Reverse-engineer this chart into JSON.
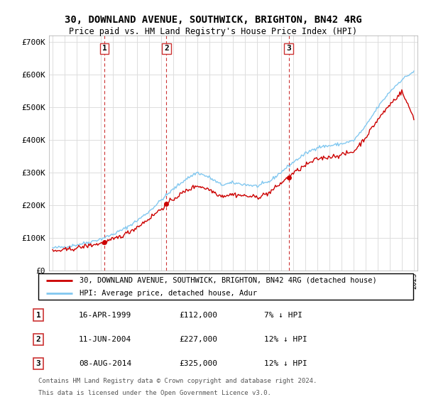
{
  "title": "30, DOWNLAND AVENUE, SOUTHWICK, BRIGHTON, BN42 4RG",
  "subtitle": "Price paid vs. HM Land Registry's House Price Index (HPI)",
  "ylim": [
    0,
    720000
  ],
  "yticks": [
    0,
    100000,
    200000,
    300000,
    400000,
    500000,
    600000,
    700000
  ],
  "ytick_labels": [
    "£0",
    "£100K",
    "£200K",
    "£300K",
    "£400K",
    "£500K",
    "£600K",
    "£700K"
  ],
  "background_color": "#ffffff",
  "plot_bg_color": "#ffffff",
  "grid_color": "#dddddd",
  "hpi_color": "#82c8f0",
  "price_color": "#cc0000",
  "transactions": [
    {
      "label": "1",
      "date": "16-APR-1999",
      "price": 112000,
      "note": "7% ↓ HPI",
      "year": 1999.3
    },
    {
      "label": "2",
      "date": "11-JUN-2004",
      "price": 227000,
      "note": "12% ↓ HPI",
      "year": 2004.45
    },
    {
      "label": "3",
      "date": "08-AUG-2014",
      "price": 325000,
      "note": "12% ↓ HPI",
      "year": 2014.6
    }
  ],
  "legend_line1": "30, DOWNLAND AVENUE, SOUTHWICK, BRIGHTON, BN42 4RG (detached house)",
  "legend_line2": "HPI: Average price, detached house, Adur",
  "footnote1": "Contains HM Land Registry data © Crown copyright and database right 2024.",
  "footnote2": "This data is licensed under the Open Government Licence v3.0.",
  "hpi_control_x": [
    1995,
    1996,
    1997,
    1998,
    1999,
    2000,
    2001,
    2002,
    2003,
    2004,
    2005,
    2006,
    2007,
    2008,
    2009,
    2010,
    2011,
    2012,
    2013,
    2014,
    2015,
    2016,
    2017,
    2018,
    2019,
    2020,
    2021,
    2022,
    2023,
    2024,
    2025
  ],
  "hpi_control_y": [
    68000,
    72000,
    78000,
    86000,
    96000,
    110000,
    128000,
    152000,
    180000,
    215000,
    248000,
    278000,
    300000,
    285000,
    262000,
    268000,
    263000,
    258000,
    272000,
    302000,
    332000,
    358000,
    378000,
    382000,
    388000,
    398000,
    442000,
    500000,
    548000,
    585000,
    610000
  ],
  "price_control_x": [
    1995,
    1996,
    1997,
    1998,
    1999,
    2000,
    2001,
    2002,
    2003,
    2004,
    2005,
    2006,
    2007,
    2008,
    2009,
    2010,
    2011,
    2012,
    2013,
    2014,
    2015,
    2016,
    2017,
    2018,
    2019,
    2020,
    2021,
    2022,
    2023,
    2024,
    2025
  ],
  "price_control_y": [
    58000,
    62000,
    68000,
    76000,
    82000,
    94000,
    110000,
    132000,
    158000,
    188000,
    218000,
    242000,
    260000,
    248000,
    228000,
    233000,
    228000,
    224000,
    238000,
    268000,
    298000,
    322000,
    342000,
    348000,
    354000,
    364000,
    408000,
    462000,
    508000,
    548000,
    468000
  ]
}
